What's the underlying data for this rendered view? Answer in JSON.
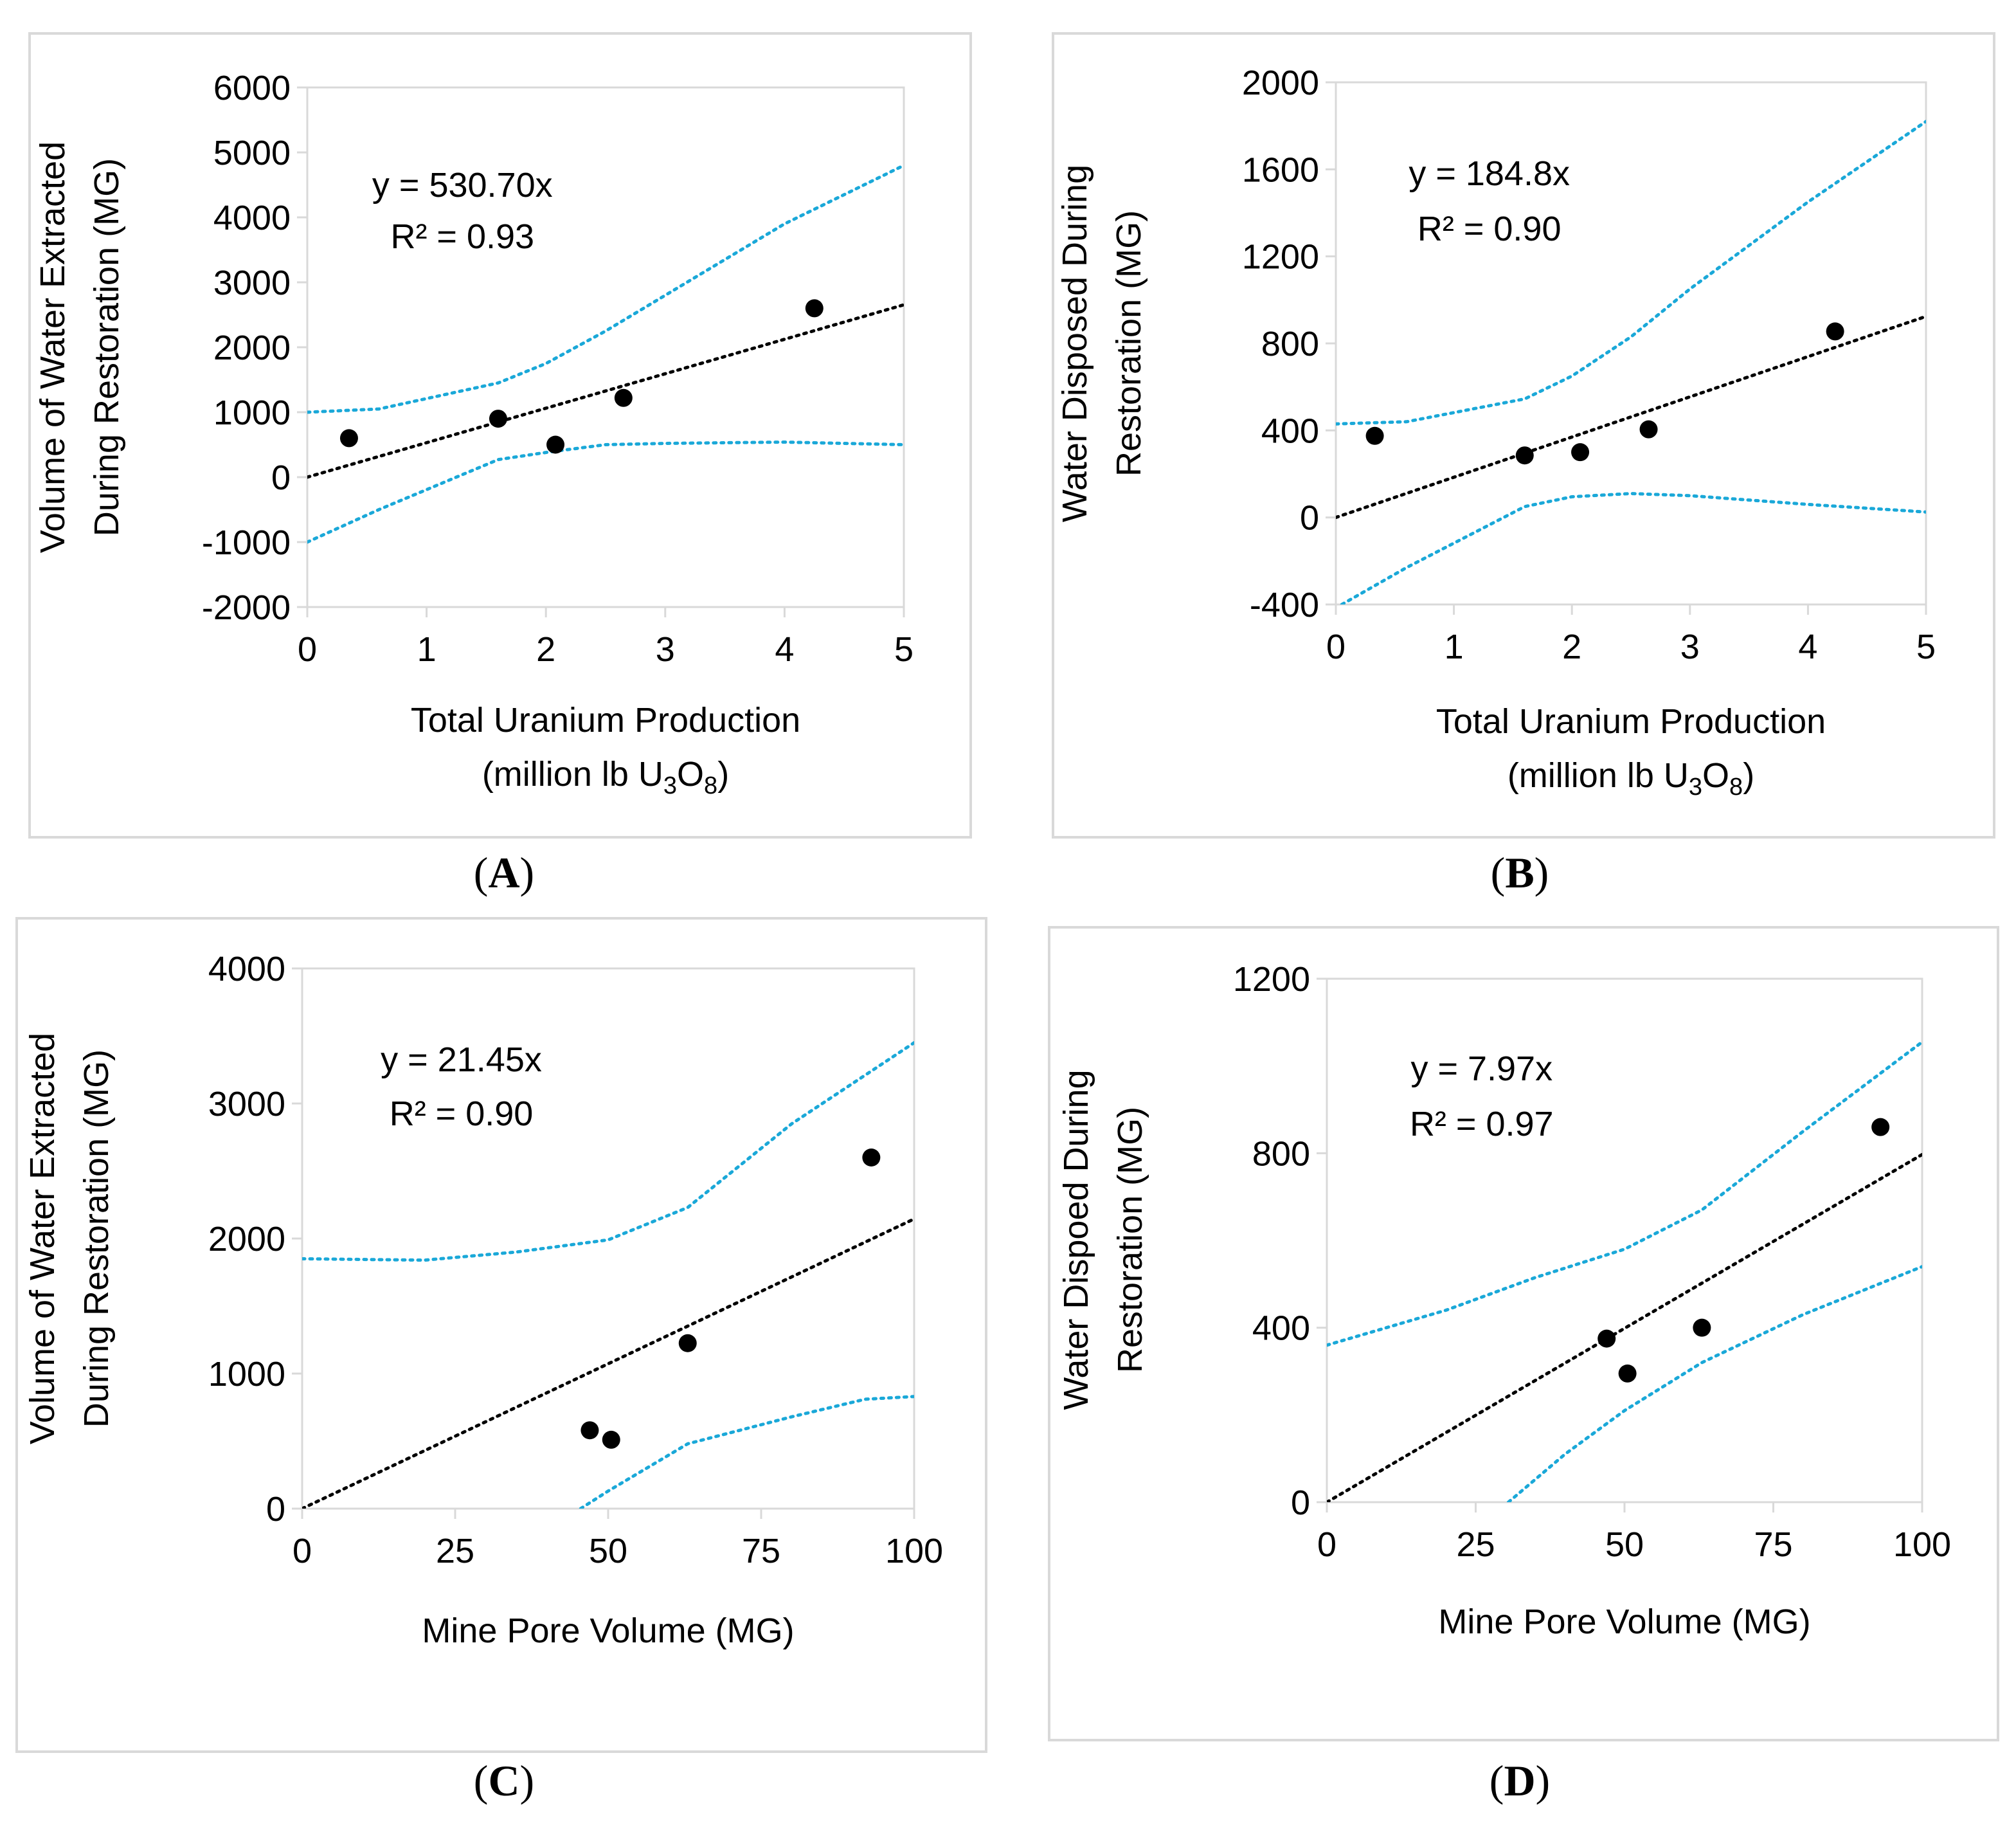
{
  "panels": [
    "A",
    "B",
    "C",
    "D"
  ],
  "chart_data": [
    {
      "type": "scatter",
      "panel": "(A)",
      "xlabel": [
        "Total Uranium Production",
        "(million lb U3O8)"
      ],
      "ylabel": [
        "Volume of Water Extracted",
        "During Restoration (MG)"
      ],
      "xlim": [
        0,
        5
      ],
      "ylim": [
        -2000,
        6000
      ],
      "xticks": [
        0,
        1,
        2,
        3,
        4,
        5
      ],
      "yticks": [
        -2000,
        -1000,
        0,
        1000,
        2000,
        3000,
        4000,
        5000,
        6000
      ],
      "equation": "y = 530.70x",
      "r2": "R² = 0.93",
      "points": [
        [
          0.35,
          600
        ],
        [
          1.6,
          900
        ],
        [
          2.08,
          500
        ],
        [
          2.65,
          1220
        ],
        [
          4.25,
          2600
        ]
      ],
      "trend_slope": 530.7,
      "upper_band": [
        [
          0,
          1000
        ],
        [
          0.6,
          1050
        ],
        [
          1.6,
          1450
        ],
        [
          2.0,
          1750
        ],
        [
          2.5,
          2250
        ],
        [
          3.0,
          2800
        ],
        [
          4.0,
          3900
        ],
        [
          5.0,
          4800
        ]
      ],
      "lower_band": [
        [
          0,
          -1000
        ],
        [
          0.6,
          -500
        ],
        [
          1.6,
          270
        ],
        [
          2.0,
          380
        ],
        [
          2.5,
          500
        ],
        [
          3.0,
          520
        ],
        [
          4.0,
          540
        ],
        [
          5.0,
          500
        ]
      ]
    },
    {
      "type": "scatter",
      "panel": "(B)",
      "xlabel": [
        "Total Uranium Production",
        "(million lb U3O8)"
      ],
      "ylabel": [
        "Water Disposed During",
        "Restoration (MG)"
      ],
      "xlim": [
        0,
        5
      ],
      "ylim": [
        -400,
        2000
      ],
      "xticks": [
        0,
        1,
        2,
        3,
        4,
        5
      ],
      "yticks": [
        -400,
        0,
        400,
        800,
        1200,
        1600,
        2000
      ],
      "equation": "y = 184.8x",
      "r2": "R² = 0.90",
      "points": [
        [
          0.33,
          375
        ],
        [
          1.6,
          285
        ],
        [
          2.07,
          300
        ],
        [
          2.65,
          405
        ],
        [
          4.23,
          855
        ]
      ],
      "trend_slope": 184.8,
      "upper_band": [
        [
          0,
          430
        ],
        [
          0.6,
          440
        ],
        [
          1.6,
          545
        ],
        [
          2.0,
          650
        ],
        [
          2.5,
          830
        ],
        [
          3.0,
          1050
        ],
        [
          4.0,
          1450
        ],
        [
          5.0,
          1820
        ]
      ],
      "lower_band": [
        [
          0.05,
          -400
        ],
        [
          0.6,
          -230
        ],
        [
          1.6,
          50
        ],
        [
          2.0,
          95
        ],
        [
          2.5,
          110
        ],
        [
          3.0,
          100
        ],
        [
          4.0,
          60
        ],
        [
          5.0,
          25
        ]
      ]
    },
    {
      "type": "scatter",
      "panel": "(C)",
      "xlabel": [
        "Mine Pore Volume (MG)"
      ],
      "ylabel": [
        "Volume of Water Extracted",
        "During Restoration (MG)"
      ],
      "xlim": [
        0,
        100
      ],
      "ylim": [
        0,
        4000
      ],
      "xticks": [
        0,
        25,
        50,
        75,
        100
      ],
      "yticks": [
        0,
        1000,
        2000,
        3000,
        4000
      ],
      "equation": "y = 21.45x",
      "r2": "R² = 0.90",
      "points": [
        [
          47,
          580
        ],
        [
          50.5,
          510
        ],
        [
          63,
          1225
        ],
        [
          93,
          2600
        ]
      ],
      "trend_slope": 21.45,
      "upper_band": [
        [
          0,
          1850
        ],
        [
          20,
          1840
        ],
        [
          35,
          1900
        ],
        [
          50,
          1990
        ],
        [
          63,
          2230
        ],
        [
          80,
          2850
        ],
        [
          100,
          3450
        ]
      ],
      "lower_band": [
        [
          45.5,
          0
        ],
        [
          50,
          130
        ],
        [
          63,
          480
        ],
        [
          80,
          680
        ],
        [
          92,
          810
        ],
        [
          100,
          830
        ]
      ]
    },
    {
      "type": "scatter",
      "panel": "(D)",
      "xlabel": [
        "Mine Pore Volume (MG)"
      ],
      "ylabel": [
        "Water Dispoed During",
        "Restoration (MG)"
      ],
      "xlim": [
        0,
        100
      ],
      "ylim": [
        0,
        1200
      ],
      "xticks": [
        0,
        25,
        50,
        75,
        100
      ],
      "yticks": [
        0,
        400,
        800,
        1200
      ],
      "equation": "y = 7.97x",
      "r2": "R² = 0.97",
      "points": [
        [
          47,
          375
        ],
        [
          50.5,
          295
        ],
        [
          63,
          400
        ],
        [
          93,
          860
        ]
      ],
      "trend_slope": 7.97,
      "upper_band": [
        [
          0,
          360
        ],
        [
          20,
          440
        ],
        [
          35,
          515
        ],
        [
          50,
          580
        ],
        [
          63,
          670
        ],
        [
          80,
          850
        ],
        [
          100,
          1055
        ]
      ],
      "lower_band": [
        [
          30.5,
          0
        ],
        [
          40,
          110
        ],
        [
          50,
          210
        ],
        [
          63,
          320
        ],
        [
          80,
          430
        ],
        [
          100,
          540
        ]
      ]
    }
  ]
}
